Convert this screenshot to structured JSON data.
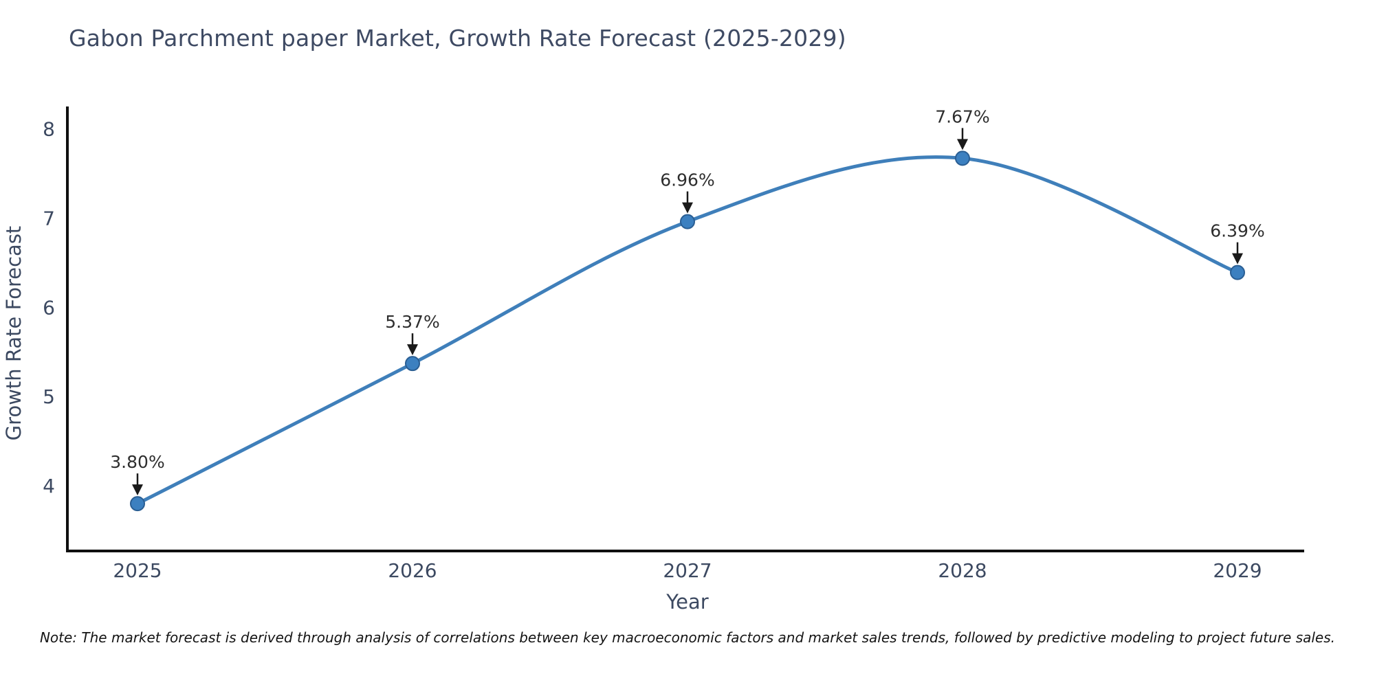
{
  "title": "Gabon Parchment paper Market, Growth Rate Forecast (2025-2029)",
  "note": "Note: The market forecast is derived through analysis of correlations between key macroeconomic factors and market sales trends, followed by predictive modeling to project future sales.",
  "chart_data": {
    "type": "line",
    "title": "Gabon Parchment paper Market, Growth Rate Forecast (2025-2029)",
    "xlabel": "Year",
    "ylabel": "Growth Rate Forecast",
    "x": [
      2025,
      2026,
      2027,
      2028,
      2029
    ],
    "series": [
      {
        "name": "Growth Rate Forecast",
        "values": [
          3.8,
          5.37,
          6.96,
          7.67,
          6.39
        ]
      }
    ],
    "point_labels": [
      "3.80%",
      "5.37%",
      "6.96%",
      "7.67%",
      "6.39%"
    ],
    "y_ticks": [
      4,
      5,
      6,
      7,
      8
    ],
    "ylim": [
      3.27,
      8.25
    ],
    "grid": false,
    "legend": "none",
    "line_style": "smooth",
    "annotations": "value labels with down arrows above each point",
    "colors": {
      "line": "#3f7fba",
      "marker_fill": "#3c80c0",
      "marker_edge": "#2a5e93",
      "spine": "#0f0f0f",
      "axis_text": "#3c4961",
      "annotation_text": "#2e2e2e",
      "arrow": "#1a1a1a",
      "background": "#ffffff"
    }
  }
}
